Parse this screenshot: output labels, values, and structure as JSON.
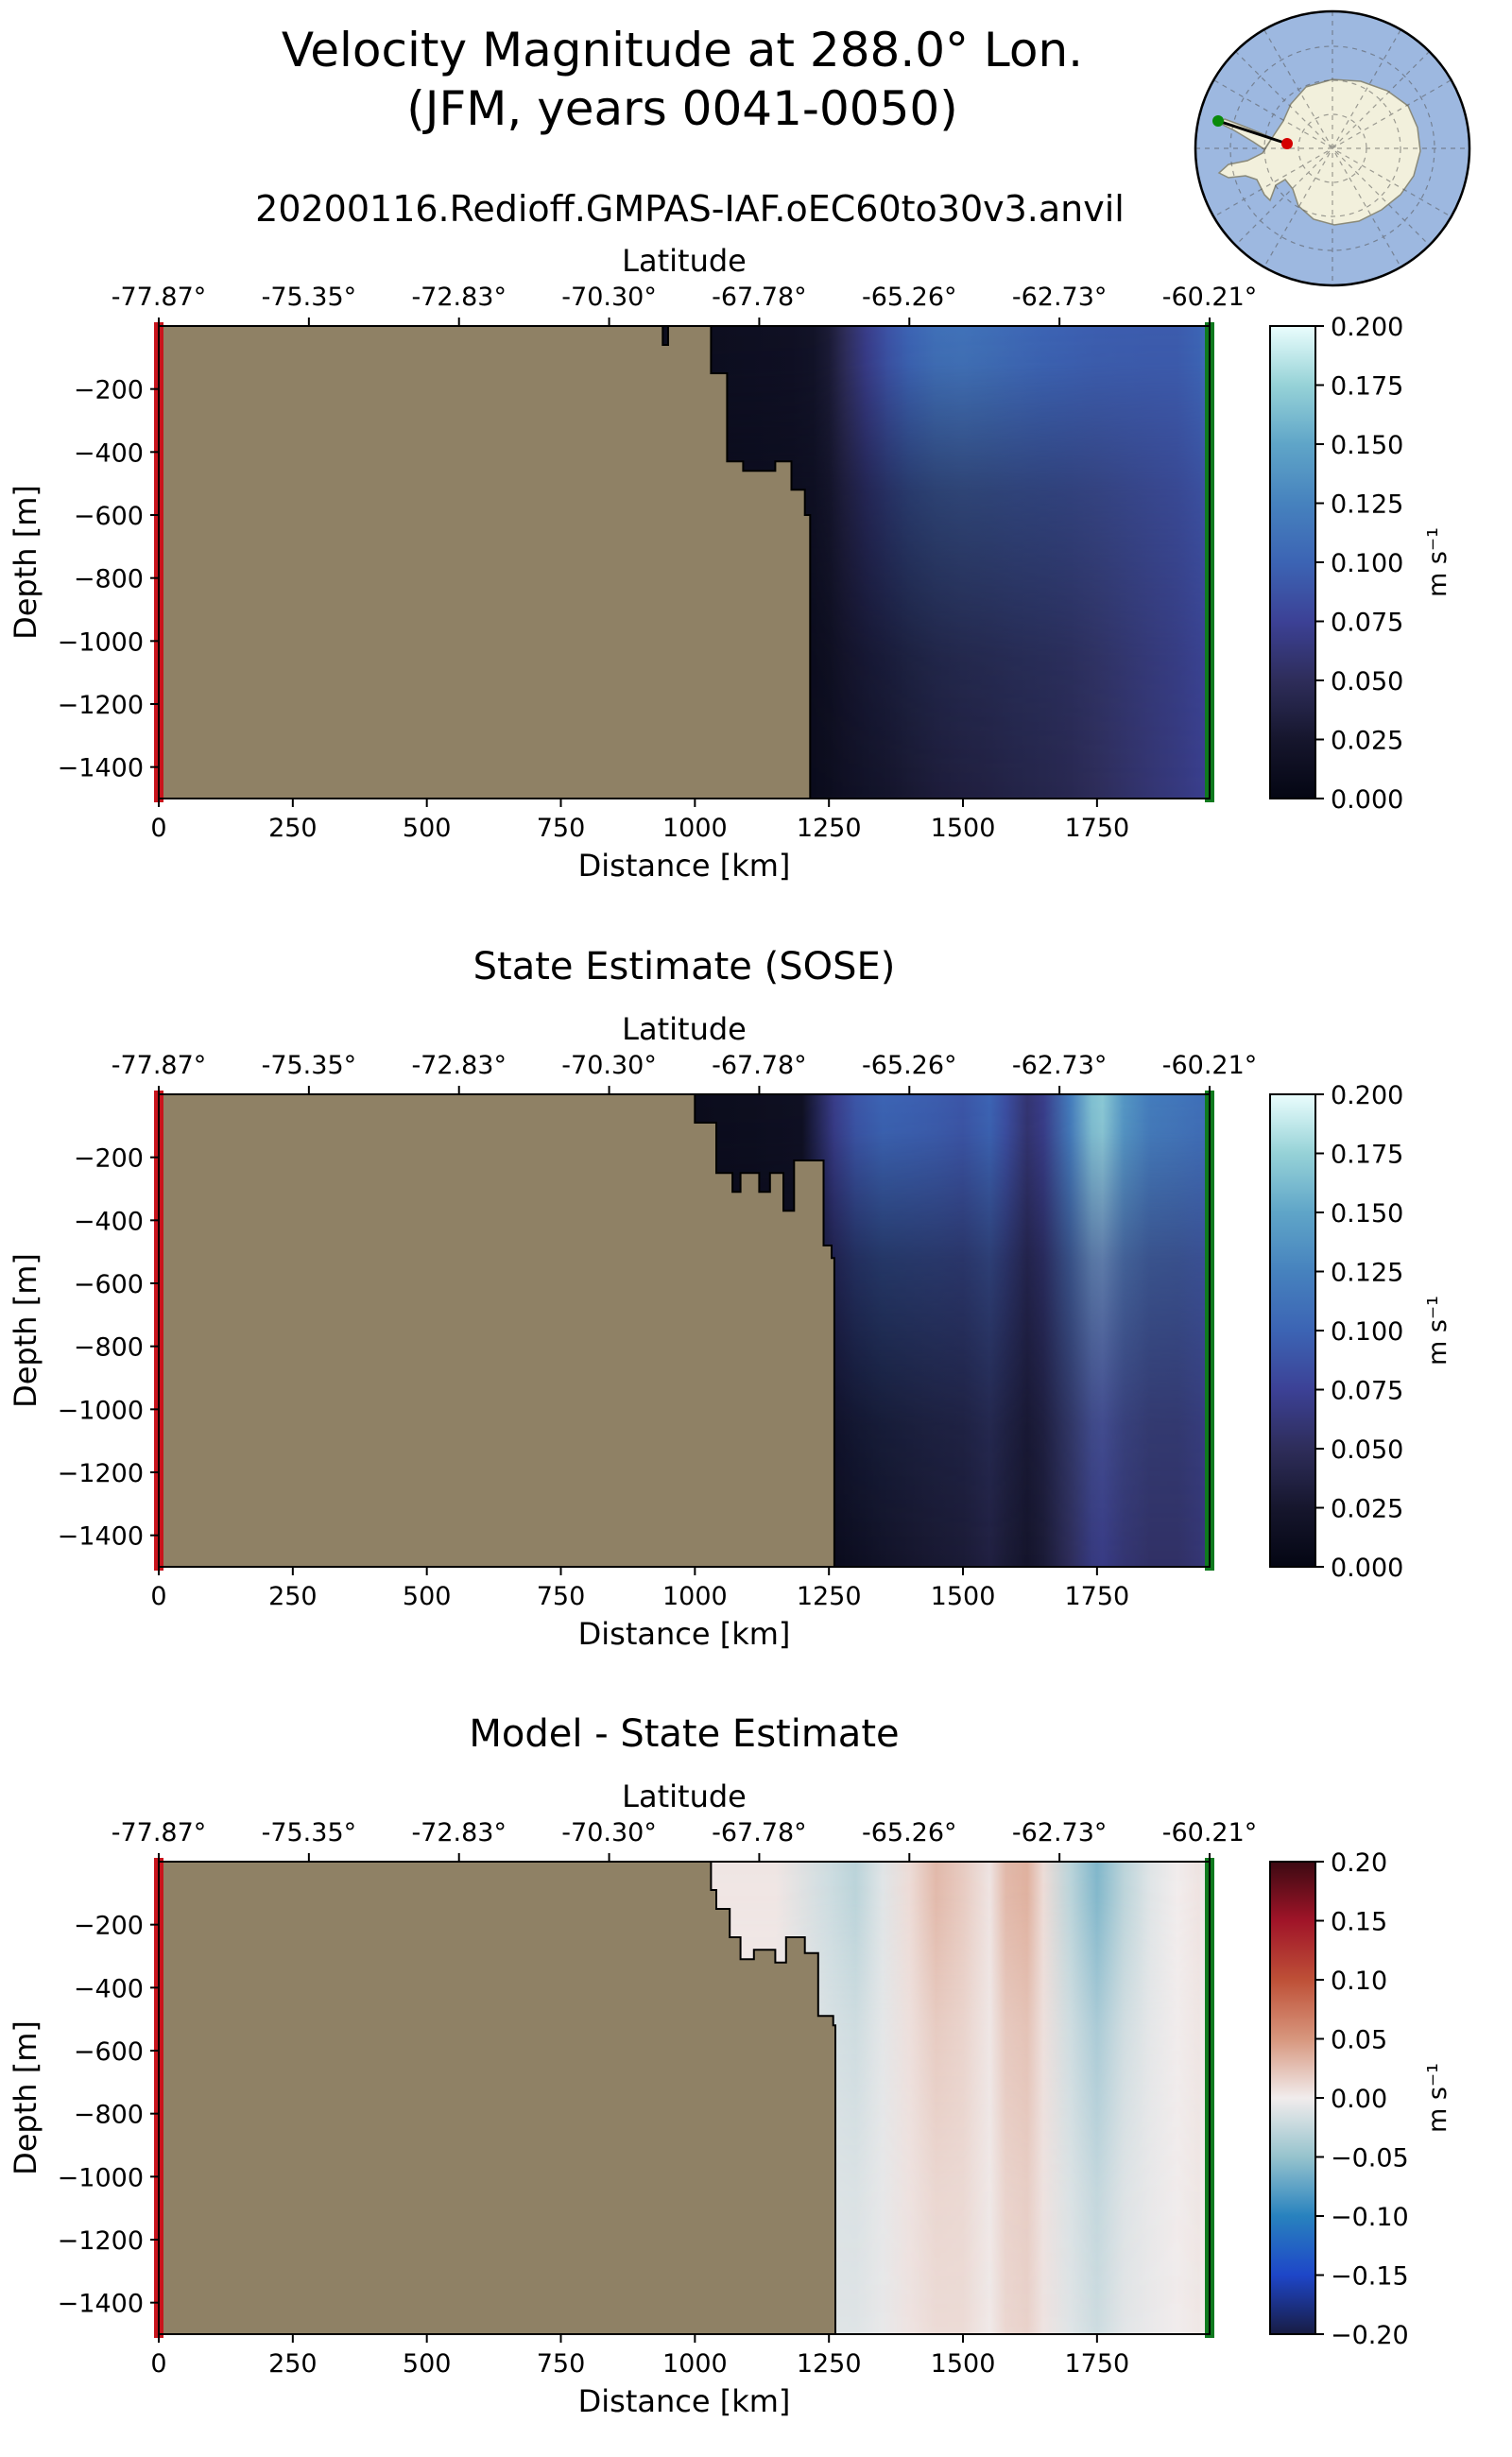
{
  "figure": {
    "title_line1": "Velocity Magnitude at 288.0° Lon.",
    "title_line2": "(JFM, years 0041-0050)",
    "subtitle": "20200116.Redioff.GMPAS-IAF.oEC60to30v3.anvil"
  },
  "inset_map": {
    "description_colors": {
      "ocean": "#9db8e0",
      "land": "#f2f0dc",
      "start_marker": "#d40000",
      "end_marker": "#0a8a0a"
    }
  },
  "colors": {
    "land": "#8f8165",
    "start_bar": "#c8141c",
    "end_bar": "#0f7a1e"
  },
  "chart_data": [
    {
      "type": "heatmap",
      "title": "",
      "xlabel": "Distance [km]",
      "ylabel": "Depth [m]",
      "top_xlabel": "Latitude",
      "xlim": [
        0,
        1960
      ],
      "ylim": [
        -1500,
        0
      ],
      "xticks": [
        0,
        250,
        500,
        750,
        1000,
        1250,
        1500,
        1750
      ],
      "xtick_labels": [
        "0",
        "250",
        "500",
        "750",
        "1000",
        "1250",
        "1500",
        "1750"
      ],
      "yticks": [
        -200,
        -400,
        -600,
        -800,
        -1000,
        -1200,
        -1400
      ],
      "ytick_labels": [
        "−200",
        "−400",
        "−600",
        "−800",
        "−1000",
        "−1200",
        "−1400"
      ],
      "top_ticks": [
        0,
        280,
        560,
        840,
        1120,
        1400,
        1680,
        1960
      ],
      "top_tick_labels": [
        "-77.87°",
        "-75.35°",
        "-72.83°",
        "-70.30°",
        "-67.78°",
        "-65.26°",
        "-62.73°",
        "-60.21°"
      ],
      "colorbar": {
        "label": "m s⁻¹",
        "range": [
          0.0,
          0.2
        ],
        "ticks": [
          0.0,
          0.025,
          0.05,
          0.075,
          0.1,
          0.125,
          0.15,
          0.175,
          0.2
        ],
        "tick_labels": [
          "0.000",
          "0.025",
          "0.050",
          "0.075",
          "0.100",
          "0.125",
          "0.150",
          "0.175",
          "0.200"
        ],
        "colormap": "ice"
      },
      "field": {
        "x": [
          1020,
          1100,
          1180,
          1220,
          1250,
          1280,
          1320,
          1360,
          1400,
          1450,
          1500,
          1550,
          1600,
          1650,
          1700,
          1750,
          1800,
          1850,
          1900,
          1940,
          1955
        ],
        "surface": [
          0.012,
          0.014,
          0.016,
          0.02,
          0.03,
          0.05,
          0.07,
          0.088,
          0.1,
          0.11,
          0.112,
          0.108,
          0.104,
          0.1,
          0.098,
          0.096,
          0.095,
          0.094,
          0.094,
          0.1,
          0.11
        ],
        "deep": [
          0.008,
          0.008,
          0.009,
          0.01,
          0.012,
          0.016,
          0.02,
          0.024,
          0.028,
          0.032,
          0.035,
          0.037,
          0.04,
          0.042,
          0.045,
          0.05,
          0.055,
          0.06,
          0.065,
          0.07,
          0.072
        ]
      },
      "land_boundary": [
        [
          0,
          0
        ],
        [
          940,
          0
        ],
        [
          940,
          -60
        ],
        [
          950,
          -60
        ],
        [
          950,
          0
        ],
        [
          1030,
          0
        ],
        [
          1030,
          -150
        ],
        [
          1060,
          -150
        ],
        [
          1060,
          -430
        ],
        [
          1090,
          -430
        ],
        [
          1090,
          -460
        ],
        [
          1150,
          -460
        ],
        [
          1150,
          -430
        ],
        [
          1180,
          -430
        ],
        [
          1180,
          -520
        ],
        [
          1205,
          -520
        ],
        [
          1205,
          -600
        ],
        [
          1215,
          -600
        ],
        [
          1215,
          -1500
        ],
        [
          0,
          -1500
        ]
      ]
    },
    {
      "type": "heatmap",
      "title": "State Estimate (SOSE)",
      "xlabel": "Distance [km]",
      "ylabel": "Depth [m]",
      "top_xlabel": "Latitude",
      "xlim": [
        0,
        1960
      ],
      "ylim": [
        -1500,
        0
      ],
      "xticks": [
        0,
        250,
        500,
        750,
        1000,
        1250,
        1500,
        1750
      ],
      "xtick_labels": [
        "0",
        "250",
        "500",
        "750",
        "1000",
        "1250",
        "1500",
        "1750"
      ],
      "yticks": [
        -200,
        -400,
        -600,
        -800,
        -1000,
        -1200,
        -1400
      ],
      "ytick_labels": [
        "−200",
        "−400",
        "−600",
        "−800",
        "−1000",
        "−1200",
        "−1400"
      ],
      "top_ticks": [
        0,
        280,
        560,
        840,
        1120,
        1400,
        1680,
        1960
      ],
      "top_tick_labels": [
        "-77.87°",
        "-75.35°",
        "-72.83°",
        "-70.30°",
        "-67.78°",
        "-65.26°",
        "-62.73°",
        "-60.21°"
      ],
      "colorbar": {
        "label": "m s⁻¹",
        "range": [
          0.0,
          0.2
        ],
        "ticks": [
          0.0,
          0.025,
          0.05,
          0.075,
          0.1,
          0.125,
          0.15,
          0.175,
          0.2
        ],
        "tick_labels": [
          "0.000",
          "0.025",
          "0.050",
          "0.075",
          "0.100",
          "0.125",
          "0.150",
          "0.175",
          "0.200"
        ],
        "colormap": "ice"
      },
      "field": {
        "x": [
          1000,
          1100,
          1200,
          1260,
          1300,
          1350,
          1400,
          1450,
          1500,
          1550,
          1580,
          1620,
          1650,
          1700,
          1740,
          1760,
          1800,
          1850,
          1900,
          1940,
          1955
        ],
        "surface": [
          0.01,
          0.012,
          0.015,
          0.07,
          0.09,
          0.1,
          0.098,
          0.095,
          0.09,
          0.1,
          0.085,
          0.06,
          0.07,
          0.12,
          0.165,
          0.17,
          0.14,
          0.12,
          0.115,
          0.11,
          0.11
        ],
        "deep": [
          0.006,
          0.007,
          0.008,
          0.01,
          0.014,
          0.02,
          0.025,
          0.028,
          0.03,
          0.036,
          0.03,
          0.024,
          0.03,
          0.05,
          0.065,
          0.068,
          0.06,
          0.055,
          0.055,
          0.06,
          0.065
        ]
      },
      "land_boundary": [
        [
          0,
          0
        ],
        [
          1000,
          0
        ],
        [
          1000,
          -90
        ],
        [
          1040,
          -90
        ],
        [
          1040,
          -250
        ],
        [
          1070,
          -250
        ],
        [
          1070,
          -310
        ],
        [
          1085,
          -310
        ],
        [
          1085,
          -250
        ],
        [
          1120,
          -250
        ],
        [
          1120,
          -310
        ],
        [
          1140,
          -310
        ],
        [
          1140,
          -250
        ],
        [
          1165,
          -250
        ],
        [
          1165,
          -370
        ],
        [
          1185,
          -370
        ],
        [
          1185,
          -210
        ],
        [
          1240,
          -210
        ],
        [
          1240,
          -480
        ],
        [
          1255,
          -480
        ],
        [
          1255,
          -520
        ],
        [
          1260,
          -520
        ],
        [
          1260,
          -1500
        ],
        [
          0,
          -1500
        ]
      ]
    },
    {
      "type": "heatmap",
      "title": "Model - State Estimate",
      "xlabel": "Distance [km]",
      "ylabel": "Depth [m]",
      "top_xlabel": "Latitude",
      "xlim": [
        0,
        1960
      ],
      "ylim": [
        -1500,
        0
      ],
      "xticks": [
        0,
        250,
        500,
        750,
        1000,
        1250,
        1500,
        1750
      ],
      "xtick_labels": [
        "0",
        "250",
        "500",
        "750",
        "1000",
        "1250",
        "1500",
        "1750"
      ],
      "yticks": [
        -200,
        -400,
        -600,
        -800,
        -1000,
        -1200,
        -1400
      ],
      "ytick_labels": [
        "−200",
        "−400",
        "−600",
        "−800",
        "−1000",
        "−1200",
        "−1400"
      ],
      "top_ticks": [
        0,
        280,
        560,
        840,
        1120,
        1400,
        1680,
        1960
      ],
      "top_tick_labels": [
        "-77.87°",
        "-75.35°",
        "-72.83°",
        "-70.30°",
        "-67.78°",
        "-65.26°",
        "-62.73°",
        "-60.21°"
      ],
      "colorbar": {
        "label": "m s⁻¹",
        "range": [
          -0.2,
          0.2
        ],
        "ticks": [
          -0.2,
          -0.15,
          -0.1,
          -0.05,
          0.0,
          0.05,
          0.1,
          0.15,
          0.2
        ],
        "tick_labels": [
          "−0.20",
          "−0.15",
          "−0.10",
          "−0.05",
          "0.00",
          "0.05",
          "0.10",
          "0.15",
          "0.20"
        ],
        "colormap": "balance"
      },
      "field": {
        "x": [
          1020,
          1150,
          1250,
          1300,
          1350,
          1400,
          1450,
          1500,
          1550,
          1580,
          1620,
          1650,
          1700,
          1750,
          1800,
          1850,
          1900,
          1940,
          1955
        ],
        "surface": [
          0.004,
          0.004,
          -0.02,
          -0.03,
          -0.01,
          0.01,
          0.03,
          0.02,
          0.005,
          0.03,
          0.035,
          0.01,
          -0.03,
          -0.06,
          -0.03,
          -0.01,
          0.0,
          0.005,
          -0.005
        ],
        "deep": [
          0.0,
          0.0,
          -0.01,
          -0.01,
          -0.005,
          0.005,
          0.01,
          0.01,
          0.002,
          0.012,
          0.015,
          0.005,
          -0.01,
          -0.02,
          -0.008,
          -0.004,
          0.0,
          0.003,
          0.0
        ]
      },
      "land_boundary": [
        [
          0,
          0
        ],
        [
          1030,
          0
        ],
        [
          1030,
          -90
        ],
        [
          1040,
          -90
        ],
        [
          1040,
          -150
        ],
        [
          1065,
          -150
        ],
        [
          1065,
          -240
        ],
        [
          1085,
          -240
        ],
        [
          1085,
          -310
        ],
        [
          1110,
          -310
        ],
        [
          1110,
          -280
        ],
        [
          1150,
          -280
        ],
        [
          1150,
          -320
        ],
        [
          1170,
          -320
        ],
        [
          1170,
          -240
        ],
        [
          1205,
          -240
        ],
        [
          1205,
          -290
        ],
        [
          1230,
          -290
        ],
        [
          1230,
          -490
        ],
        [
          1258,
          -490
        ],
        [
          1258,
          -520
        ],
        [
          1262,
          -520
        ],
        [
          1262,
          -1500
        ],
        [
          0,
          -1500
        ]
      ]
    }
  ]
}
